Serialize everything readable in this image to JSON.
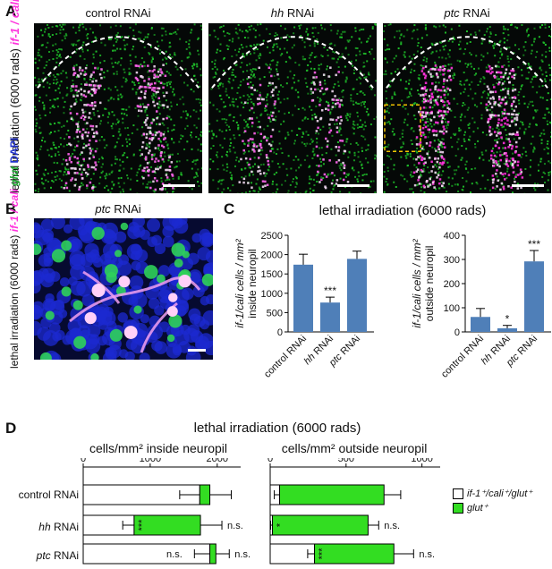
{
  "panelA": {
    "letter": "A",
    "row_label_prefix": "lethal irradiation (6000 rads)",
    "stain_1": "if-1 / cali",
    "stain_2": "glut",
    "columns": [
      {
        "title_italic": "",
        "title_rest": "control RNAi"
      },
      {
        "title_italic": "hh",
        "title_rest": " RNAi"
      },
      {
        "title_italic": "ptc",
        "title_rest": " RNAi"
      }
    ]
  },
  "panelB": {
    "letter": "B",
    "title_italic": "ptc",
    "title_rest": " RNAi",
    "row_label_prefix": "lethal irradiation (6000 rads)",
    "stain_1": "if-1 / cali",
    "stain_2": "glut",
    "stain_3": "DAPI"
  },
  "panelC": {
    "letter": "C",
    "title": "lethal irradiation (6000 rads)"
  },
  "panelD": {
    "letter": "D",
    "title": "lethal irradiation (6000 rads)",
    "left_title": "cells/mm² inside neuropil",
    "right_title": "cells/mm² outside neuropil",
    "legend": [
      {
        "label": "if-1⁺/cali⁺/glut⁺",
        "color": "#ffffff"
      },
      {
        "label": "glut⁺",
        "color": "#33dd22"
      }
    ],
    "rows": [
      {
        "italic": "",
        "rest": "control RNAi"
      },
      {
        "italic": "hh",
        "rest": " RNAi"
      },
      {
        "italic": "ptc",
        "rest": " RNAi"
      }
    ]
  },
  "colors": {
    "bar_blue": "#4f7fb8",
    "bar_green": "#33dd22",
    "magenta": "#ff33dd",
    "green": "#22cc33",
    "dapi": "#2233cc"
  },
  "chart_data": [
    {
      "type": "bar",
      "ylabel": "if-1/cali cells / mm² inside neuropil",
      "categories": [
        "control RNAi",
        "hh RNAi",
        "ptc RNAi"
      ],
      "values": [
        1740,
        760,
        1890
      ],
      "errors": [
        270,
        140,
        200
      ],
      "significance": [
        "",
        "***",
        ""
      ],
      "ylim": [
        0,
        2500
      ],
      "yticks": [
        "0",
        "500",
        "1000",
        "1500",
        "2000",
        "2500"
      ]
    },
    {
      "type": "bar",
      "ylabel": "if-1/cali cells / mm² outside neuropil",
      "categories": [
        "control RNAi",
        "hh RNAi",
        "ptc RNAi"
      ],
      "values": [
        62,
        15,
        292
      ],
      "errors": [
        35,
        12,
        45
      ],
      "significance": [
        "",
        "*",
        "***"
      ],
      "ylim": [
        0,
        400
      ],
      "yticks": [
        "0",
        "100",
        "200",
        "300",
        "400"
      ]
    },
    {
      "type": "bar",
      "orientation": "horizontal-stacked",
      "xlabel": "cells/mm² inside neuropil",
      "categories": [
        "control RNAi",
        "hh RNAi",
        "ptc RNAi"
      ],
      "series": [
        {
          "name": "if-1⁺/cali⁺/glut⁺",
          "values": [
            1740,
            760,
            1890
          ],
          "errors": [
            300,
            170,
            230
          ]
        },
        {
          "name": "glut⁺",
          "values": [
            150,
            990,
            90
          ],
          "errors": [
            320,
            320,
            200
          ]
        }
      ],
      "significance_inner": [
        "",
        "***",
        "n.s."
      ],
      "significance_outer": [
        "",
        "n.s.",
        "n.s."
      ],
      "xticks": [
        "0",
        "1000",
        "2000"
      ],
      "xlim": [
        0,
        2350
      ]
    },
    {
      "type": "bar",
      "orientation": "horizontal-stacked",
      "xlabel": "cells/mm² outside neuropil",
      "categories": [
        "control RNAi",
        "hh RNAi",
        "ptc RNAi"
      ],
      "series": [
        {
          "name": "if-1⁺/cali⁺/glut⁺",
          "values": [
            62,
            15,
            292
          ],
          "errors": [
            35,
            12,
            45
          ]
        },
        {
          "name": "glut⁺",
          "values": [
            688,
            630,
            523
          ],
          "errors": [
            110,
            70,
            130
          ]
        }
      ],
      "significance_inner": [
        "",
        "*",
        "***"
      ],
      "significance_outer": [
        "",
        "n.s.",
        "n.s."
      ],
      "xticks": [
        "0",
        "500",
        "1000"
      ],
      "xlim": [
        0,
        1120
      ]
    }
  ]
}
